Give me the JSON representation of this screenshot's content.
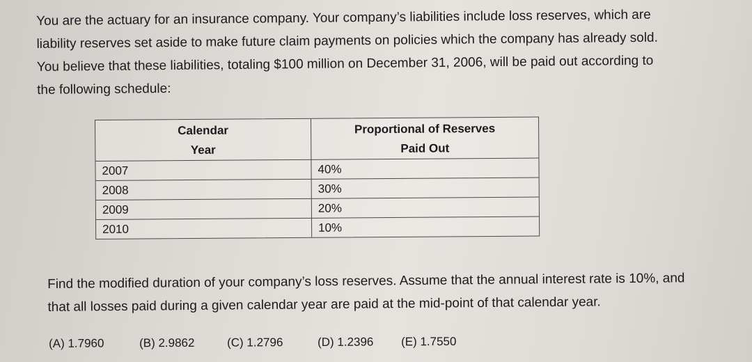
{
  "intro": {
    "lines": [
      "You are the actuary for an insurance company. Your company’s liabilities include loss reserves, which are",
      "liability reserves set aside to make future claim payments on policies which the company has already sold.",
      "You believe that these liabilities, totaling $100 million on December 31, 2006, will be paid out according to",
      "the following schedule:"
    ]
  },
  "table": {
    "headers": [
      [
        "Calendar",
        "Year"
      ],
      [
        "Proportional of Reserves",
        "Paid Out"
      ]
    ],
    "rows": [
      [
        "2007",
        "40%"
      ],
      [
        "2008",
        "30%"
      ],
      [
        "2009",
        "20%"
      ],
      [
        "2010",
        "10%"
      ]
    ]
  },
  "question": {
    "lines": [
      "Find the modified duration of your company’s loss reserves. Assume that the annual interest rate is 10%, and",
      "that all losses paid during a given calendar year are paid at the mid-point of that calendar year."
    ]
  },
  "choices": [
    "(A) 1.7960",
    "(B) 2.9862",
    "(C) 1.2796",
    "(D) 1.2396",
    "(E) 1.7550"
  ]
}
